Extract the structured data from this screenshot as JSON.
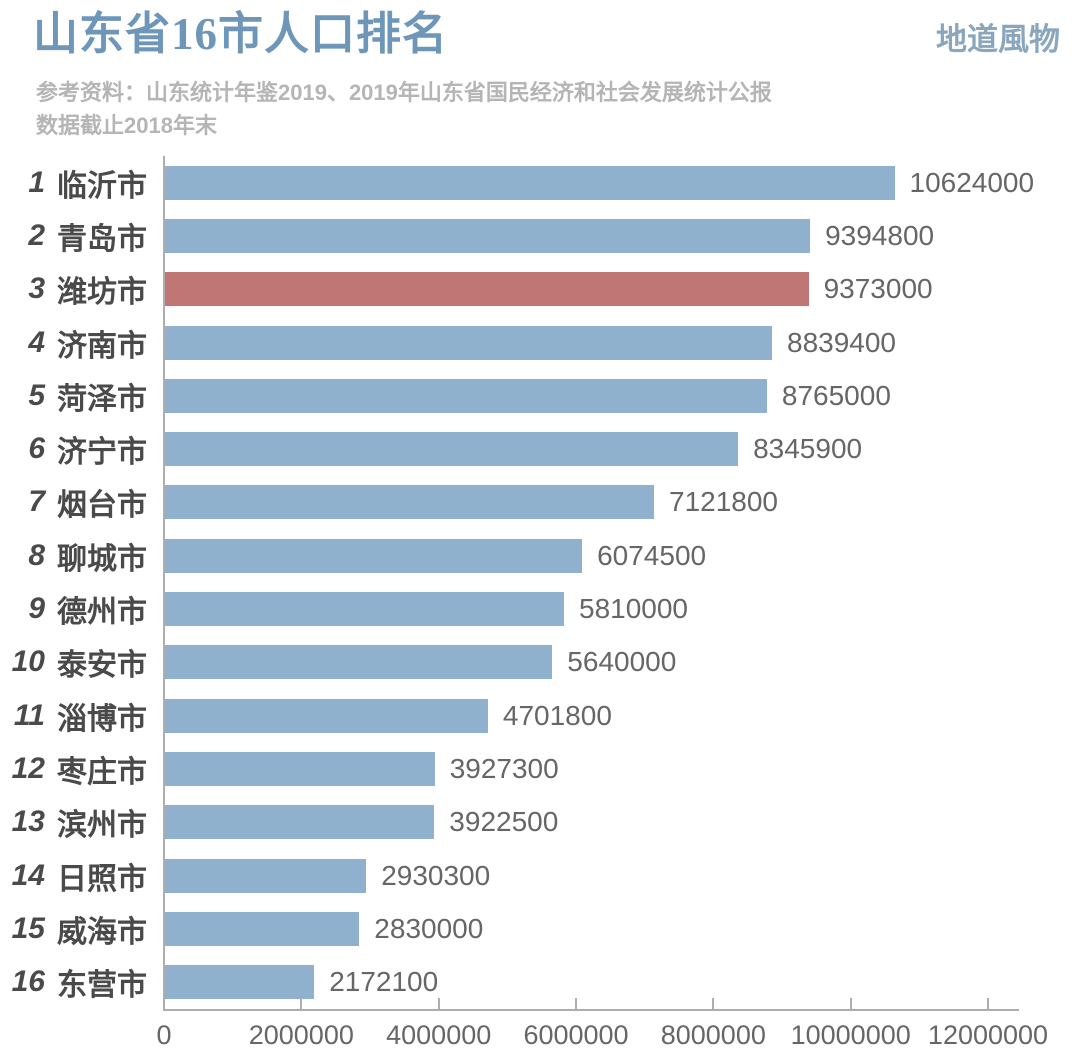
{
  "header": {
    "title": "山东省16市人口排名",
    "logo": "地道風物",
    "source_line1": "参考资料：山东统计年鉴2019、2019年山东省国民经济和社会发展统计公报",
    "source_line2": "数据截止2018年末"
  },
  "colors": {
    "bar": "#8FB1CD",
    "bar_highlight": "#C17676",
    "title": "#6E96B8",
    "logo": "#8AA6BD",
    "subtitle": "#B5B5B5",
    "label": "#4A4A4A",
    "value": "#666666",
    "axis": "#ADADAD"
  },
  "chart_data": {
    "type": "bar",
    "orientation": "horizontal",
    "title": "山东省16市人口排名",
    "xlabel": "",
    "ylabel": "",
    "xlim": [
      0,
      12000000
    ],
    "grid": false,
    "legend": false,
    "x_ticks": [
      0,
      2000000,
      4000000,
      6000000,
      8000000,
      10000000,
      12000000
    ],
    "highlight_note": "rank 3 潍坊市 shown in red, all other bars blue",
    "rows": [
      {
        "rank": 1,
        "name": "临沂市",
        "value": 10624000,
        "highlight": false
      },
      {
        "rank": 2,
        "name": "青岛市",
        "value": 9394800,
        "highlight": false
      },
      {
        "rank": 3,
        "name": "潍坊市",
        "value": 9373000,
        "highlight": true
      },
      {
        "rank": 4,
        "name": "济南市",
        "value": 8839400,
        "highlight": false
      },
      {
        "rank": 5,
        "name": "菏泽市",
        "value": 8765000,
        "highlight": false
      },
      {
        "rank": 6,
        "name": "济宁市",
        "value": 8345900,
        "highlight": false
      },
      {
        "rank": 7,
        "name": "烟台市",
        "value": 7121800,
        "highlight": false
      },
      {
        "rank": 8,
        "name": "聊城市",
        "value": 6074500,
        "highlight": false
      },
      {
        "rank": 9,
        "name": "德州市",
        "value": 5810000,
        "highlight": false
      },
      {
        "rank": 10,
        "name": "泰安市",
        "value": 5640000,
        "highlight": false
      },
      {
        "rank": 11,
        "name": "淄博市",
        "value": 4701800,
        "highlight": false
      },
      {
        "rank": 12,
        "name": "枣庄市",
        "value": 3927300,
        "highlight": false
      },
      {
        "rank": 13,
        "name": "滨州市",
        "value": 3922500,
        "highlight": false
      },
      {
        "rank": 14,
        "name": "日照市",
        "value": 2930300,
        "highlight": false
      },
      {
        "rank": 15,
        "name": "威海市",
        "value": 2830000,
        "highlight": false
      },
      {
        "rank": 16,
        "name": "东营市",
        "value": 2172100,
        "highlight": false
      }
    ]
  }
}
